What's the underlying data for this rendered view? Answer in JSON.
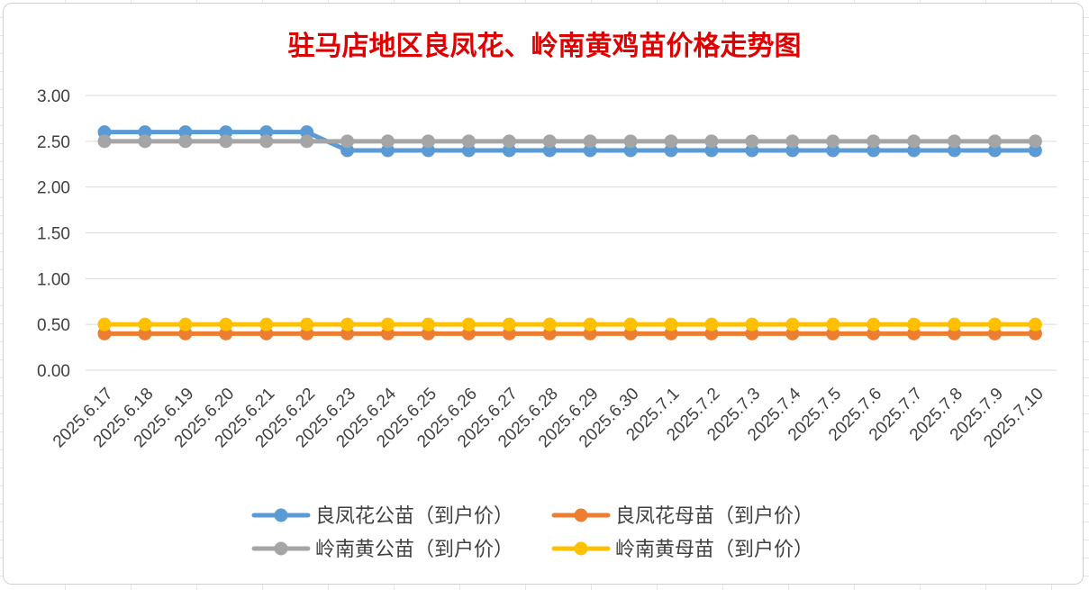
{
  "chart_data": {
    "type": "line",
    "title": "驻马店地区良凤花、岭南黄鸡苗价格走势图",
    "categories": [
      "2025.6.17",
      "2025.6.18",
      "2025.6.19",
      "2025.6.20",
      "2025.6.21",
      "2025.6.22",
      "2025.6.23",
      "2025.6.24",
      "2025.6.25",
      "2025.6.26",
      "2025.6.27",
      "2025.6.28",
      "2025.6.29",
      "2025.6.30",
      "2025.7.1",
      "2025.7.2",
      "2025.7.3",
      "2025.7.4",
      "2025.7.5",
      "2025.7.6",
      "2025.7.7",
      "2025.7.8",
      "2025.7.9",
      "2025.7.10"
    ],
    "series": [
      {
        "name": "良凤花公苗（到户价）",
        "color": "#5b9bd5",
        "values": [
          2.6,
          2.6,
          2.6,
          2.6,
          2.6,
          2.6,
          2.4,
          2.4,
          2.4,
          2.4,
          2.4,
          2.4,
          2.4,
          2.4,
          2.4,
          2.4,
          2.4,
          2.4,
          2.4,
          2.4,
          2.4,
          2.4,
          2.4,
          2.4
        ]
      },
      {
        "name": "良凤花母苗（到户价）",
        "color": "#ed7d31",
        "values": [
          0.4,
          0.4,
          0.4,
          0.4,
          0.4,
          0.4,
          0.4,
          0.4,
          0.4,
          0.4,
          0.4,
          0.4,
          0.4,
          0.4,
          0.4,
          0.4,
          0.4,
          0.4,
          0.4,
          0.4,
          0.4,
          0.4,
          0.4,
          0.4
        ]
      },
      {
        "name": "岭南黄公苗（到户价）",
        "color": "#a5a5a5",
        "values": [
          2.5,
          2.5,
          2.5,
          2.5,
          2.5,
          2.5,
          2.5,
          2.5,
          2.5,
          2.5,
          2.5,
          2.5,
          2.5,
          2.5,
          2.5,
          2.5,
          2.5,
          2.5,
          2.5,
          2.5,
          2.5,
          2.5,
          2.5,
          2.5
        ]
      },
      {
        "name": "岭南黄母苗（到户价）",
        "color": "#ffc000",
        "values": [
          0.5,
          0.5,
          0.5,
          0.5,
          0.5,
          0.5,
          0.5,
          0.5,
          0.5,
          0.5,
          0.5,
          0.5,
          0.5,
          0.5,
          0.5,
          0.5,
          0.5,
          0.5,
          0.5,
          0.5,
          0.5,
          0.5,
          0.5,
          0.5
        ]
      }
    ],
    "draw_order": [
      1,
      3,
      0,
      2
    ],
    "yticks": [
      "0.00",
      "0.50",
      "1.00",
      "1.50",
      "2.00",
      "2.50",
      "3.00"
    ],
    "ylim": [
      0,
      3
    ],
    "grid": true,
    "legend": "bottom",
    "title_color": "#e00000"
  }
}
